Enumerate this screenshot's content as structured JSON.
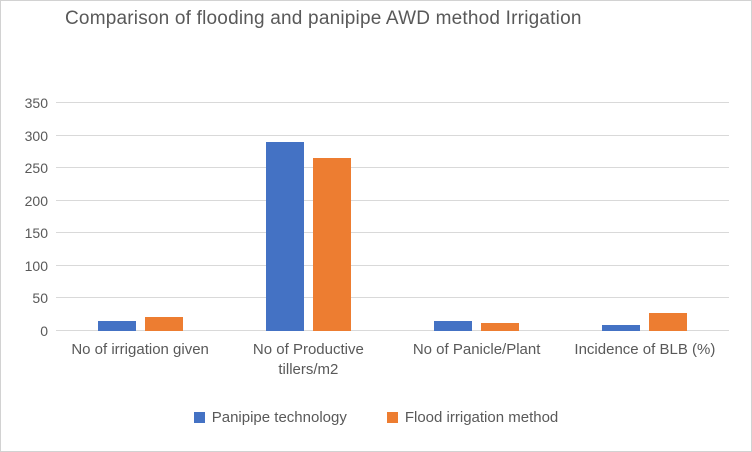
{
  "chart_data": {
    "type": "bar",
    "title": "Comparison of flooding and panipipe AWD method Irrigation",
    "categories": [
      "No of irrigation given",
      "No of Productive tillers/m2",
      "No of Panicle/Plant",
      "Incidence of BLB (%)"
    ],
    "series": [
      {
        "name": "Panipipe technology",
        "color": "#4472C4",
        "values": [
          15,
          290,
          15,
          10
        ]
      },
      {
        "name": "Flood irrigation method",
        "color": "#ED7D31",
        "values": [
          21,
          265,
          13,
          27
        ]
      }
    ],
    "ylim": [
      0,
      350
    ],
    "yticks": [
      0,
      50,
      100,
      150,
      200,
      250,
      300,
      350
    ],
    "xlabel": "",
    "ylabel": "",
    "grid": true,
    "legend_position": "bottom"
  },
  "colors": {
    "background": "#FFFFFF",
    "border": "#D2D2D2",
    "gridline": "#D9D9D9",
    "text": "#595959",
    "series_blue": "#4472C4",
    "series_orange": "#ED7D31"
  }
}
